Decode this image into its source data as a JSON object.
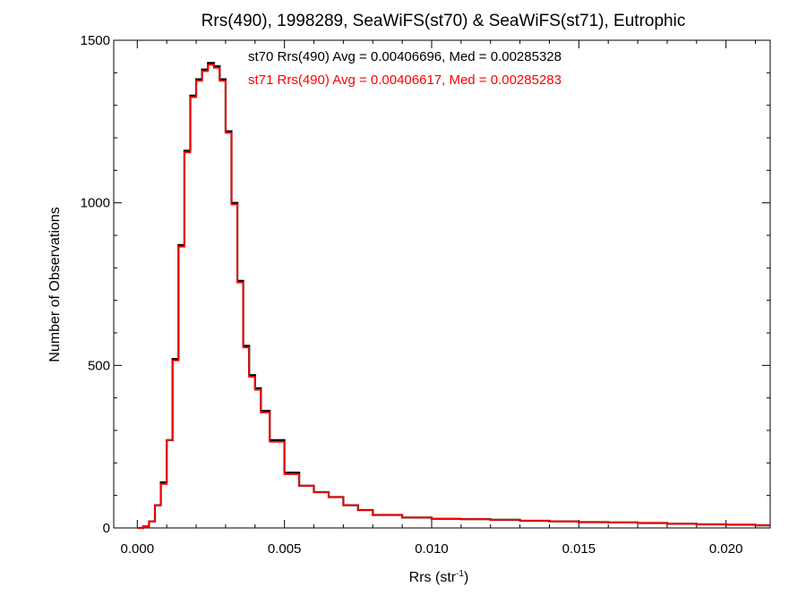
{
  "chart_data": {
    "type": "line",
    "title": "Rrs(490), 1998289, SeaWiFS(st70) & SeaWiFS(st71), Eutrophic",
    "xlabel": "Rrs (str",
    "xlabel_sup": "-1",
    "xlabel_close": ")",
    "ylabel": "Number of Observations",
    "xlim": [
      -0.0008,
      0.0215
    ],
    "ylim": [
      0,
      1500
    ],
    "x_ticks": [
      0.0,
      0.005,
      0.01,
      0.015,
      0.02
    ],
    "x_tick_labels": [
      "0.000",
      "0.005",
      "0.010",
      "0.015",
      "0.020"
    ],
    "y_ticks": [
      0,
      500,
      1000,
      1500
    ],
    "y_tick_labels": [
      "0",
      "500",
      "1000",
      "1500"
    ],
    "grid": false,
    "legend_position": "top-center",
    "annotations": [
      "st70 Rrs(490) Avg = 0.00406696, Med = 0.00285328",
      "st71 Rrs(490) Avg = 0.00406617, Med = 0.00285283"
    ],
    "series": [
      {
        "name": "st70",
        "color": "#000000",
        "x": [
          0.0,
          0.0002,
          0.0004,
          0.0006,
          0.0008,
          0.001,
          0.0012,
          0.0014,
          0.0016,
          0.0018,
          0.002,
          0.0022,
          0.0024,
          0.0026,
          0.0028,
          0.003,
          0.0032,
          0.0034,
          0.0036,
          0.0038,
          0.004,
          0.0042,
          0.0045,
          0.005,
          0.0055,
          0.006,
          0.0065,
          0.007,
          0.0075,
          0.008,
          0.009,
          0.01,
          0.011,
          0.012,
          0.013,
          0.014,
          0.015,
          0.016,
          0.017,
          0.018,
          0.019,
          0.02,
          0.021
        ],
        "y": [
          0,
          5,
          20,
          70,
          140,
          270,
          520,
          870,
          1160,
          1330,
          1380,
          1410,
          1430,
          1420,
          1380,
          1220,
          1000,
          760,
          560,
          470,
          430,
          360,
          270,
          170,
          130,
          110,
          95,
          70,
          55,
          40,
          32,
          28,
          27,
          25,
          22,
          20,
          18,
          17,
          15,
          13,
          11,
          10,
          8
        ]
      },
      {
        "name": "st71",
        "color": "#ff0000",
        "x": [
          0.0,
          0.0002,
          0.0004,
          0.0006,
          0.0008,
          0.001,
          0.0012,
          0.0014,
          0.0016,
          0.0018,
          0.002,
          0.0022,
          0.0024,
          0.0026,
          0.0028,
          0.003,
          0.0032,
          0.0034,
          0.0036,
          0.0038,
          0.004,
          0.0042,
          0.0045,
          0.005,
          0.0055,
          0.006,
          0.0065,
          0.007,
          0.0075,
          0.008,
          0.009,
          0.01,
          0.011,
          0.012,
          0.013,
          0.014,
          0.015,
          0.016,
          0.017,
          0.018,
          0.019,
          0.02,
          0.021
        ],
        "y": [
          0,
          5,
          20,
          70,
          135,
          270,
          515,
          865,
          1155,
          1325,
          1375,
          1405,
          1425,
          1415,
          1375,
          1215,
          995,
          755,
          555,
          465,
          425,
          355,
          265,
          165,
          130,
          110,
          95,
          70,
          55,
          40,
          32,
          28,
          27,
          25,
          22,
          20,
          18,
          17,
          15,
          13,
          11,
          10,
          8
        ]
      }
    ]
  }
}
